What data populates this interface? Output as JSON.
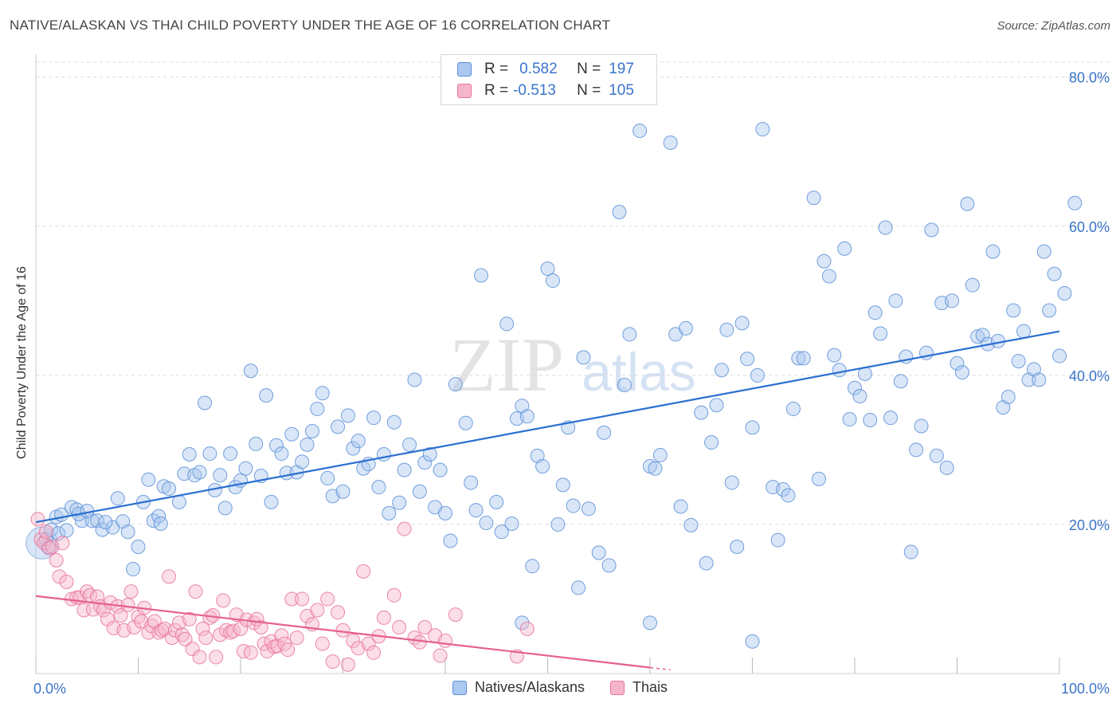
{
  "title": "NATIVE/ALASKAN VS THAI CHILD POVERTY UNDER THE AGE OF 16 CORRELATION CHART",
  "source": "Source: ZipAtlas.com",
  "legend": {
    "rows": [
      {
        "r_label": "R =",
        "r_value": "0.582",
        "n_label": "N =",
        "n_value": "197"
      },
      {
        "r_label": "R =",
        "r_value": "-0.513",
        "n_label": "N =",
        "n_value": "105"
      }
    ]
  },
  "watermark": {
    "zip": "ZIP",
    "atlas": "atlas"
  },
  "colors": {
    "blue": "#5b8fd6",
    "blue_fill": "#aac8f0",
    "pink": "#e8739c",
    "pink_fill": "#f6b6ca",
    "blue_line": "#2a6fd1",
    "pink_line": "#e65f8f",
    "tick_text": "#3a74c9"
  },
  "chart_data": {
    "type": "scatter",
    "title": "NATIVE/ALASKAN VS THAI CHILD POVERTY UNDER THE AGE OF 16 CORRELATION CHART",
    "xlabel": "",
    "ylabel": "Child Poverty Under the Age of 16",
    "xlim": [
      0,
      100
    ],
    "ylim": [
      0,
      82
    ],
    "x_tick_labels": [
      "0.0%",
      "100.0%"
    ],
    "y_ticks": [
      20,
      40,
      60,
      80
    ],
    "y_tick_labels": [
      "20.0%",
      "40.0%",
      "60.0%",
      "80.0%"
    ],
    "grid": "horizontal dashed",
    "legend_position": "top-center",
    "series": [
      {
        "name": "Natives/Alaskans",
        "r": 0.582,
        "n": 197,
        "trend": {
          "x": [
            0,
            100
          ],
          "y": [
            20.3,
            45.9
          ]
        },
        "points": [
          [
            1,
            18
          ],
          [
            1.2,
            17
          ],
          [
            1.5,
            19.3
          ],
          [
            2,
            21
          ],
          [
            2.5,
            21.3
          ],
          [
            3.5,
            22.3
          ],
          [
            4,
            22
          ],
          [
            4.5,
            20.5
          ],
          [
            5.5,
            20.5
          ],
          [
            6,
            20.5
          ],
          [
            6.5,
            19.3
          ],
          [
            7.5,
            19.6
          ],
          [
            8,
            23.5
          ],
          [
            8.5,
            20.4
          ],
          [
            9,
            19
          ],
          [
            9.5,
            14
          ],
          [
            10,
            17
          ],
          [
            10.5,
            23
          ],
          [
            11,
            26
          ],
          [
            11.5,
            20.5
          ],
          [
            12,
            21.1
          ],
          [
            12.5,
            25.1
          ],
          [
            13,
            24.8
          ],
          [
            14,
            23
          ],
          [
            14.5,
            26.8
          ],
          [
            15,
            29.4
          ],
          [
            15.5,
            26.6
          ],
          [
            16,
            27
          ],
          [
            16.5,
            36.3
          ],
          [
            17,
            29.5
          ],
          [
            17.5,
            24.6
          ],
          [
            18,
            26.6
          ],
          [
            18.5,
            22.2
          ],
          [
            19,
            29.5
          ],
          [
            19.5,
            25
          ],
          [
            20,
            25.9
          ],
          [
            20.5,
            27.5
          ],
          [
            21,
            40.6
          ],
          [
            21.5,
            30.8
          ],
          [
            22,
            26.5
          ],
          [
            22.5,
            37.3
          ],
          [
            23,
            23
          ],
          [
            23.5,
            30.6
          ],
          [
            24,
            29.5
          ],
          [
            24.5,
            26.9
          ],
          [
            25,
            32.1
          ],
          [
            25.5,
            27
          ],
          [
            26,
            28.4
          ],
          [
            26.5,
            30.7
          ],
          [
            27,
            32.5
          ],
          [
            27.5,
            35.5
          ],
          [
            28,
            37.6
          ],
          [
            28.5,
            26.2
          ],
          [
            29,
            23.8
          ],
          [
            29.5,
            33.1
          ],
          [
            30,
            24.4
          ],
          [
            30.5,
            34.6
          ],
          [
            31,
            30.2
          ],
          [
            31.5,
            31.2
          ],
          [
            32,
            27.5
          ],
          [
            32.5,
            28.1
          ],
          [
            33,
            34.3
          ],
          [
            33.5,
            25
          ],
          [
            34,
            29.4
          ],
          [
            34.5,
            21.5
          ],
          [
            35,
            33.7
          ],
          [
            35.5,
            22.9
          ],
          [
            36,
            27.3
          ],
          [
            36.5,
            30.7
          ],
          [
            37,
            39.4
          ],
          [
            37.5,
            24.4
          ],
          [
            38,
            28.3
          ],
          [
            38.5,
            29.4
          ],
          [
            39,
            22.3
          ],
          [
            39.5,
            27.3
          ],
          [
            40,
            21.5
          ],
          [
            40.5,
            17.8
          ],
          [
            41,
            38.8
          ],
          [
            42,
            33.6
          ],
          [
            42.5,
            25.6
          ],
          [
            43,
            21.9
          ],
          [
            43.5,
            53.4
          ],
          [
            44,
            20.2
          ],
          [
            45,
            23
          ],
          [
            45.5,
            19
          ],
          [
            46,
            46.9
          ],
          [
            46.5,
            20.1
          ],
          [
            47,
            34.2
          ],
          [
            47.5,
            35.9
          ],
          [
            48,
            34.5
          ],
          [
            48.5,
            14.4
          ],
          [
            49,
            29.2
          ],
          [
            49.5,
            27.8
          ],
          [
            50,
            54.3
          ],
          [
            50.5,
            52.7
          ],
          [
            51,
            20
          ],
          [
            51.5,
            25.3
          ],
          [
            52,
            33
          ],
          [
            52.5,
            22.5
          ],
          [
            53,
            11.5
          ],
          [
            53.5,
            42.4
          ],
          [
            54,
            22.1
          ],
          [
            55,
            16.2
          ],
          [
            55.5,
            32.3
          ],
          [
            56,
            14.5
          ],
          [
            57,
            61.9
          ],
          [
            57.5,
            38.7
          ],
          [
            58,
            45.5
          ],
          [
            59,
            72.8
          ],
          [
            60,
            27.8
          ],
          [
            60.5,
            27.5
          ],
          [
            61,
            29.3
          ],
          [
            62,
            71.2
          ],
          [
            62.5,
            45.5
          ],
          [
            63,
            22.4
          ],
          [
            63.5,
            46.3
          ],
          [
            64,
            19.9
          ],
          [
            65,
            35
          ],
          [
            65.5,
            14.8
          ],
          [
            66,
            31
          ],
          [
            66.5,
            36
          ],
          [
            67,
            40.7
          ],
          [
            67.5,
            46.1
          ],
          [
            68,
            25.6
          ],
          [
            68.5,
            17
          ],
          [
            69,
            47
          ],
          [
            69.5,
            42.2
          ],
          [
            70,
            33
          ],
          [
            70.5,
            40
          ],
          [
            71,
            73
          ],
          [
            72,
            25
          ],
          [
            72.5,
            17.9
          ],
          [
            73,
            24.7
          ],
          [
            73.5,
            23.9
          ],
          [
            74,
            35.5
          ],
          [
            74.5,
            42.3
          ],
          [
            75,
            42.3
          ],
          [
            76,
            63.8
          ],
          [
            76.5,
            26.1
          ],
          [
            77,
            55.3
          ],
          [
            77.5,
            53.3
          ],
          [
            78,
            42.7
          ],
          [
            78.5,
            40.7
          ],
          [
            79,
            57
          ],
          [
            79.5,
            34.1
          ],
          [
            80,
            38.3
          ],
          [
            80.5,
            37.2
          ],
          [
            81,
            40.2
          ],
          [
            81.5,
            34
          ],
          [
            82,
            48.4
          ],
          [
            82.5,
            45.6
          ],
          [
            83,
            59.8
          ],
          [
            83.5,
            34.3
          ],
          [
            84,
            50
          ],
          [
            84.5,
            39.2
          ],
          [
            85,
            42.5
          ],
          [
            85.5,
            16.3
          ],
          [
            86,
            30
          ],
          [
            86.5,
            33.2
          ],
          [
            87,
            43
          ],
          [
            87.5,
            59.5
          ],
          [
            88,
            29.2
          ],
          [
            88.5,
            49.7
          ],
          [
            89,
            27.6
          ],
          [
            89.5,
            50
          ],
          [
            90,
            41.6
          ],
          [
            90.5,
            40.4
          ],
          [
            91,
            63
          ],
          [
            91.5,
            52.1
          ],
          [
            92,
            45.2
          ],
          [
            92.5,
            45.4
          ],
          [
            93,
            44.2
          ],
          [
            93.5,
            56.6
          ],
          [
            94,
            44.6
          ],
          [
            94.5,
            35.7
          ],
          [
            95,
            37.1
          ],
          [
            95.5,
            48.7
          ],
          [
            96,
            41.9
          ],
          [
            96.5,
            45.9
          ],
          [
            97,
            39.4
          ],
          [
            97.5,
            40.8
          ],
          [
            98,
            39.4
          ],
          [
            98.5,
            56.6
          ],
          [
            99,
            48.7
          ],
          [
            99.5,
            53.6
          ],
          [
            100,
            42.6
          ],
          [
            100.5,
            51
          ],
          [
            101.5,
            63.1
          ],
          [
            2.2,
            18.8
          ],
          [
            3,
            19.2
          ],
          [
            4.2,
            21.4
          ],
          [
            5,
            21.8
          ],
          [
            6.8,
            20.3
          ],
          [
            12.2,
            20.1
          ],
          [
            60,
            6.8
          ],
          [
            47.5,
            6.8
          ],
          [
            70,
            4.3
          ]
        ]
      },
      {
        "name": "Thais",
        "r": -0.513,
        "n": 105,
        "trend": {
          "x": [
            0,
            60
          ],
          "y": [
            10.4,
            0.8
          ],
          "dashed_extension": {
            "x": [
              60,
              62
            ],
            "y": [
              0.8,
              0.5
            ]
          }
        },
        "points": [
          [
            0.2,
            20.7
          ],
          [
            0.5,
            18
          ],
          [
            0.8,
            17.5
          ],
          [
            1,
            19
          ],
          [
            1.3,
            16.8
          ],
          [
            1.6,
            17
          ],
          [
            2,
            15.2
          ],
          [
            2.3,
            13
          ],
          [
            2.6,
            17.5
          ],
          [
            3,
            12.3
          ],
          [
            3.5,
            10
          ],
          [
            4,
            10.2
          ],
          [
            4.3,
            10.2
          ],
          [
            4.7,
            8.5
          ],
          [
            5,
            11
          ],
          [
            5.3,
            10.5
          ],
          [
            5.6,
            8.6
          ],
          [
            6,
            10.3
          ],
          [
            6.3,
            9
          ],
          [
            6.6,
            8.5
          ],
          [
            7,
            7.3
          ],
          [
            7.3,
            9.5
          ],
          [
            7.6,
            6.1
          ],
          [
            8,
            9
          ],
          [
            8.3,
            7.8
          ],
          [
            8.6,
            5.8
          ],
          [
            9,
            9.2
          ],
          [
            9.3,
            11
          ],
          [
            9.6,
            6.2
          ],
          [
            10,
            7.6
          ],
          [
            10.3,
            7
          ],
          [
            10.6,
            8.8
          ],
          [
            11,
            5.5
          ],
          [
            11.3,
            6.4
          ],
          [
            11.6,
            7
          ],
          [
            12,
            5.5
          ],
          [
            12.3,
            5.8
          ],
          [
            12.6,
            6
          ],
          [
            13,
            13
          ],
          [
            13.3,
            4.8
          ],
          [
            13.6,
            5.8
          ],
          [
            14,
            6.8
          ],
          [
            14.3,
            5.2
          ],
          [
            14.6,
            4.6
          ],
          [
            15,
            7.3
          ],
          [
            15.3,
            3.3
          ],
          [
            15.6,
            11
          ],
          [
            16,
            2.2
          ],
          [
            16.3,
            6
          ],
          [
            16.6,
            4.8
          ],
          [
            17,
            7.5
          ],
          [
            17.3,
            7.8
          ],
          [
            17.6,
            2.2
          ],
          [
            18,
            5.2
          ],
          [
            18.3,
            9.8
          ],
          [
            18.6,
            5.8
          ],
          [
            19,
            5.5
          ],
          [
            19.3,
            5.7
          ],
          [
            19.6,
            7.9
          ],
          [
            20,
            6
          ],
          [
            20.3,
            3
          ],
          [
            20.6,
            7.2
          ],
          [
            21,
            2.8
          ],
          [
            21.3,
            6.8
          ],
          [
            21.6,
            7.3
          ],
          [
            22,
            6.2
          ],
          [
            22.3,
            4
          ],
          [
            22.6,
            3
          ],
          [
            23,
            4.3
          ],
          [
            23.3,
            3.6
          ],
          [
            23.6,
            3.7
          ],
          [
            24,
            5.1
          ],
          [
            24.3,
            4
          ],
          [
            24.6,
            3.2
          ],
          [
            25,
            10
          ],
          [
            25.5,
            4.8
          ],
          [
            26,
            10
          ],
          [
            26.5,
            7.7
          ],
          [
            27,
            6.6
          ],
          [
            27.5,
            8.5
          ],
          [
            28,
            4
          ],
          [
            28.5,
            10
          ],
          [
            29,
            1.6
          ],
          [
            29.5,
            8.2
          ],
          [
            30,
            5.8
          ],
          [
            30.5,
            1.2
          ],
          [
            31,
            4.4
          ],
          [
            31.5,
            3.4
          ],
          [
            32,
            13.7
          ],
          [
            32.5,
            4
          ],
          [
            33,
            2.8
          ],
          [
            33.5,
            5
          ],
          [
            34,
            7.5
          ],
          [
            35,
            10.5
          ],
          [
            35.5,
            6.2
          ],
          [
            36,
            19.4
          ],
          [
            37,
            4.8
          ],
          [
            37.5,
            4.2
          ],
          [
            38,
            6.2
          ],
          [
            39,
            5.1
          ],
          [
            39.5,
            2.4
          ],
          [
            40,
            4.4
          ],
          [
            41,
            7.9
          ],
          [
            47,
            2.3
          ],
          [
            48,
            6
          ]
        ]
      }
    ]
  },
  "bottom_legend": {
    "series1": "Natives/Alaskans",
    "series2": "Thais"
  }
}
